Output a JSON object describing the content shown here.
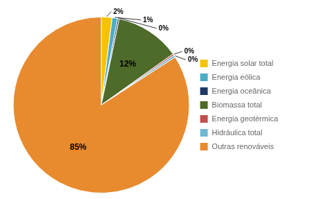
{
  "chart_data": {
    "type": "pie",
    "categories": [
      "Energia solar total",
      "Energia eólica",
      "Energia oceânica",
      "Biomassa total",
      "Energia geotérmica",
      "Hidráulica total",
      "Outras renováveis"
    ],
    "values": [
      2,
      1,
      0.3,
      12,
      0.3,
      0.4,
      85
    ],
    "value_labels": [
      "2%",
      "1%",
      "0%",
      "12%",
      "0%",
      "0%",
      "85%"
    ],
    "colors": [
      "#F5C200",
      "#4BACC6",
      "#1F3864",
      "#4E6B2A",
      "#C0504D",
      "#70B8D0",
      "#E88A2E"
    ],
    "legend": "right",
    "data_labels": true
  }
}
